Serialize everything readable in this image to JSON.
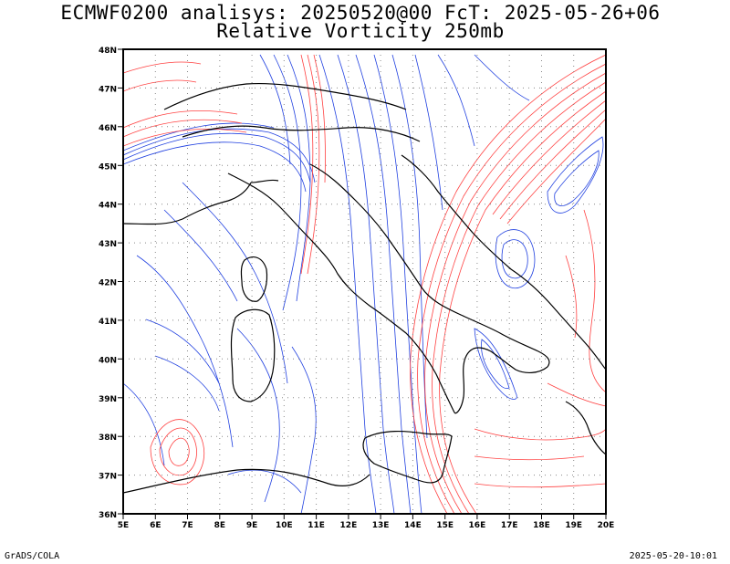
{
  "title_line1": "ECMWF0200 analisys: 20250520@00 FcT: 2025-05-26+06",
  "title_line2": "Relative Vorticity 250mb",
  "footer_left": "GrADS/COLA",
  "footer_right": "2025-05-20-10:01",
  "colors": {
    "positive": "#ff4040",
    "negative": "#2040e0",
    "coast": "#000000",
    "grid": "#888888"
  },
  "axes": {
    "lon_labels": [
      "5E",
      "6E",
      "7E",
      "8E",
      "9E",
      "10E",
      "11E",
      "12E",
      "13E",
      "14E",
      "15E",
      "16E",
      "17E",
      "18E",
      "19E",
      "20E"
    ],
    "lat_labels": [
      "36N",
      "37N",
      "38N",
      "39N",
      "40N",
      "41N",
      "42N",
      "43N",
      "44N",
      "45N",
      "46N",
      "47N",
      "48N"
    ]
  },
  "map": {
    "projection": "lat-lon",
    "lon_range": [
      5,
      20
    ],
    "lat_range": [
      36,
      48
    ],
    "grid": "dotted",
    "field": "relative vorticity, 250 hPa"
  }
}
